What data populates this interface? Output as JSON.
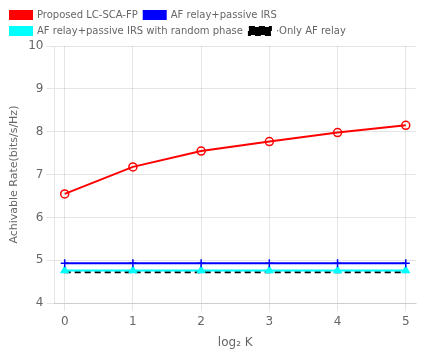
{
  "chart_data": {
    "type": "line",
    "xlabel": "log₂ K",
    "ylabel": "Achivable Rate(bits/s/Hz)",
    "x": [
      0,
      1,
      2,
      3,
      4,
      5
    ],
    "series": [
      {
        "name": "Proposed LC-SCA-FP",
        "color": "#ff0000",
        "marker": "circle",
        "line_style": "solid",
        "values": [
          6.55,
          7.18,
          7.55,
          7.77,
          7.98,
          8.15
        ]
      },
      {
        "name": "AF relay+passive IRS",
        "color": "#0000ff",
        "marker": "plus",
        "line_style": "solid",
        "values": [
          4.93,
          4.93,
          4.93,
          4.93,
          4.93,
          4.93
        ]
      },
      {
        "name": "AF relay+passive IRS with random phase",
        "color": "#00ffff",
        "marker": "triangle",
        "line_style": "solid",
        "values": [
          4.76,
          4.76,
          4.76,
          4.76,
          4.76,
          4.76
        ]
      },
      {
        "name": "·Only AF relay",
        "color": "#000000",
        "marker": "none",
        "line_style": "dashed",
        "values": [
          4.72,
          4.72,
          4.72,
          4.72,
          4.72,
          4.72
        ]
      }
    ],
    "xlim": [
      -0.15,
      5.15
    ],
    "xticks": [
      0,
      1,
      2,
      3,
      4,
      5
    ],
    "ylim": [
      4.0,
      10.0
    ],
    "yticks": [
      4,
      5,
      6,
      7,
      8,
      9,
      10
    ],
    "grid": true,
    "legend": "upper left"
  }
}
